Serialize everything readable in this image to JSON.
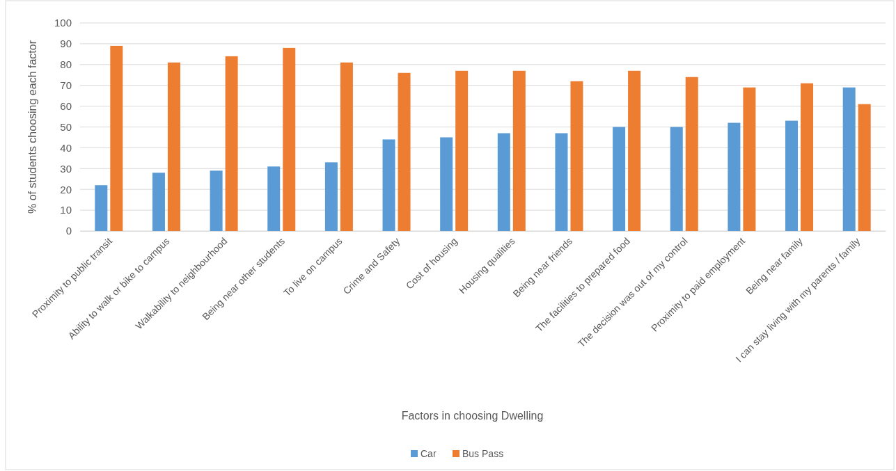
{
  "chart_data": {
    "type": "bar",
    "xlabel": "Factors in choosing Dwelling",
    "ylabel": "% of students choosing each factor",
    "categories": [
      "Proximity to public transit",
      "Ability to walk or bike to campus",
      "Walkability to neighbourhood",
      "Being near other students",
      "To live on campus",
      "Crime and Safety",
      "Cost of housing",
      "Housing qualities",
      "Being near friends",
      "The facilities to prepared food",
      "The decision was out of my control",
      "Proximity to paid employment",
      "Being near family",
      "I can stay living with my parents / family"
    ],
    "series": [
      {
        "name": "Car",
        "color": "#5b9bd5",
        "values": [
          22,
          28,
          29,
          31,
          33,
          44,
          45,
          47,
          47,
          50,
          50,
          52,
          53,
          69
        ]
      },
      {
        "name": "Bus Pass",
        "color": "#ed7d31",
        "values": [
          89,
          81,
          84,
          88,
          81,
          76,
          77,
          77,
          72,
          77,
          74,
          69,
          71,
          61
        ]
      }
    ],
    "ylim": [
      0,
      100
    ],
    "yticks": [
      0,
      10,
      20,
      30,
      40,
      50,
      60,
      70,
      80,
      90,
      100
    ],
    "grid": "y",
    "legend": "bottom"
  }
}
